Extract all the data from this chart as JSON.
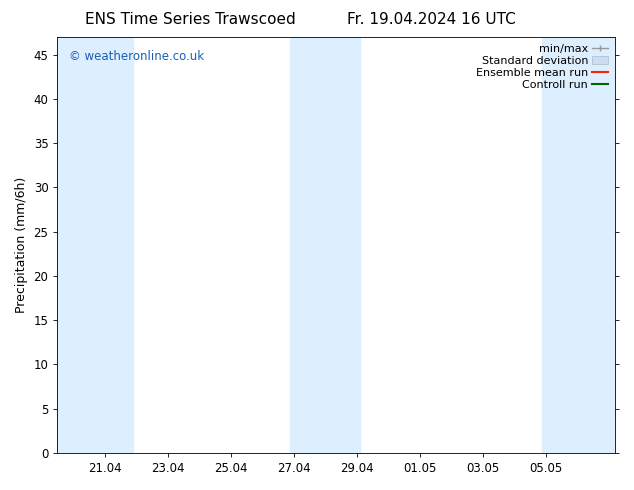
{
  "title_left": "ENS Time Series Trawscoed",
  "title_right": "Fr. 19.04.2024 16 UTC",
  "ylabel": "Precipitation (mm/6h)",
  "watermark": "© weatheronline.co.uk",
  "ylim": [
    0,
    47
  ],
  "yticks": [
    0,
    5,
    10,
    15,
    20,
    25,
    30,
    35,
    40,
    45
  ],
  "xtick_labels": [
    "21.04",
    "23.04",
    "25.04",
    "27.04",
    "29.04",
    "01.05",
    "03.05",
    "05.05"
  ],
  "bg_color": "#ffffff",
  "plot_bg_color": "#ffffff",
  "shaded_bands": [
    {
      "xmin": 19.5,
      "xmax": 21.9,
      "color": "#ddeeff"
    },
    {
      "xmin": 26.9,
      "xmax": 29.1,
      "color": "#ddeeff"
    },
    {
      "xmin": 34.9,
      "xmax": 37.2,
      "color": "#ddeeff"
    }
  ],
  "legend_items": [
    {
      "label": "min/max",
      "color": "#aaaaaa",
      "style": "errorbar"
    },
    {
      "label": "Standard deviation",
      "color": "#ccddee",
      "style": "box"
    },
    {
      "label": "Ensemble mean run",
      "color": "#ff0000",
      "style": "line"
    },
    {
      "label": "Controll run",
      "color": "#008800",
      "style": "line"
    }
  ],
  "x_start_days": 19.5,
  "x_end_days": 37.2,
  "x_ticks_days": [
    21.0,
    23.0,
    25.0,
    27.0,
    29.0,
    31.0,
    33.0,
    35.0
  ],
  "grid_color": "#cccccc",
  "title_fontsize": 11,
  "label_fontsize": 9,
  "tick_fontsize": 8.5,
  "legend_fontsize": 8
}
